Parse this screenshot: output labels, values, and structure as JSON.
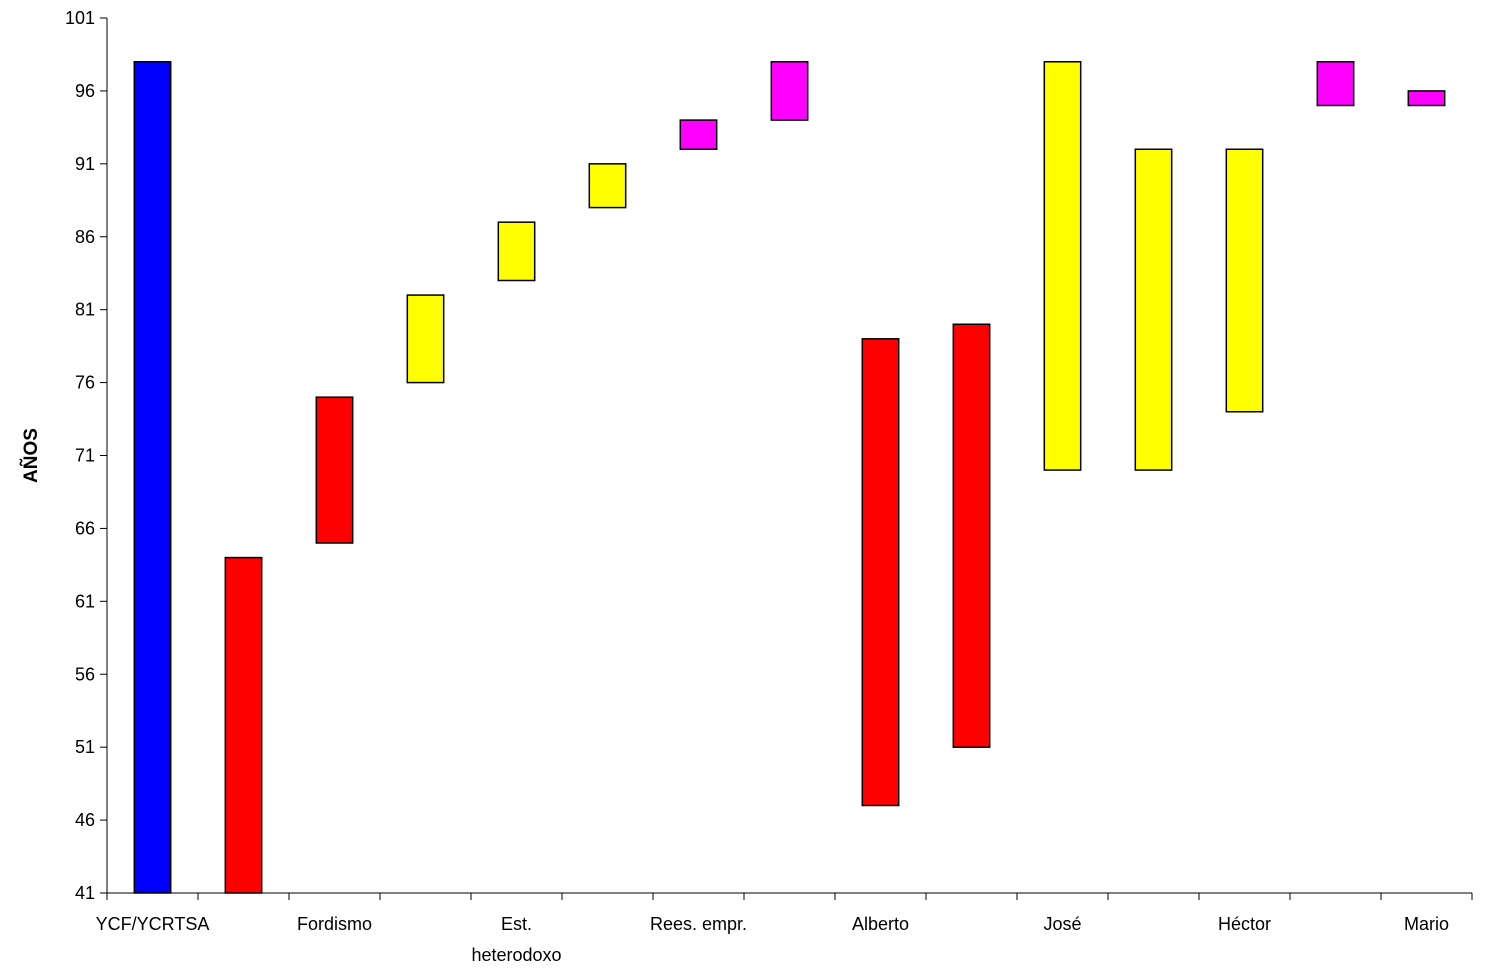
{
  "chart_data": {
    "type": "bar",
    "subtype": "floating-range",
    "title": "",
    "xlabel": "",
    "ylabel": "AÑOS",
    "ylim": [
      41,
      101
    ],
    "yticks": [
      41,
      46,
      51,
      56,
      61,
      66,
      71,
      76,
      81,
      86,
      91,
      96,
      101
    ],
    "grid": false,
    "legend": "none",
    "categories": [
      "YCF/YCRTSA",
      "",
      "Fordismo",
      "",
      "Est. heterodoxo",
      "",
      "Rees. empr.",
      "",
      "Alberto",
      "",
      "José",
      "",
      "Héctor",
      "",
      "Mario"
    ],
    "category_label_lines": [
      [
        "YCF/YCRTSA"
      ],
      [
        ""
      ],
      [
        "Fordismo"
      ],
      [
        ""
      ],
      [
        "Est.",
        "heterodoxo"
      ],
      [
        ""
      ],
      [
        "Rees. empr."
      ],
      [
        ""
      ],
      [
        "Alberto"
      ],
      [
        ""
      ],
      [
        "José"
      ],
      [
        ""
      ],
      [
        "Héctor"
      ],
      [
        ""
      ],
      [
        "Mario"
      ]
    ],
    "ranges": [
      {
        "low": 41,
        "high": 98,
        "color": "#0000ff"
      },
      {
        "low": 41,
        "high": 64,
        "color": "#ff0000"
      },
      {
        "low": 65,
        "high": 75,
        "color": "#ff0000"
      },
      {
        "low": 76,
        "high": 82,
        "color": "#ffff00"
      },
      {
        "low": 83,
        "high": 87,
        "color": "#ffff00"
      },
      {
        "low": 88,
        "high": 91,
        "color": "#ffff00"
      },
      {
        "low": 92,
        "high": 94,
        "color": "#ff00ff"
      },
      {
        "low": 94,
        "high": 98,
        "color": "#ff00ff"
      },
      {
        "low": 47,
        "high": 79,
        "color": "#ff0000"
      },
      {
        "low": 51,
        "high": 80,
        "color": "#ff0000"
      },
      {
        "low": 70,
        "high": 98,
        "color": "#ffff00"
      },
      {
        "low": 70,
        "high": 92,
        "color": "#ffff00"
      },
      {
        "low": 74,
        "high": 92,
        "color": "#ffff00"
      },
      {
        "low": 95,
        "high": 98,
        "color": "#ff00ff"
      },
      {
        "low": 95,
        "high": 96,
        "color": "#ff00ff"
      }
    ]
  }
}
